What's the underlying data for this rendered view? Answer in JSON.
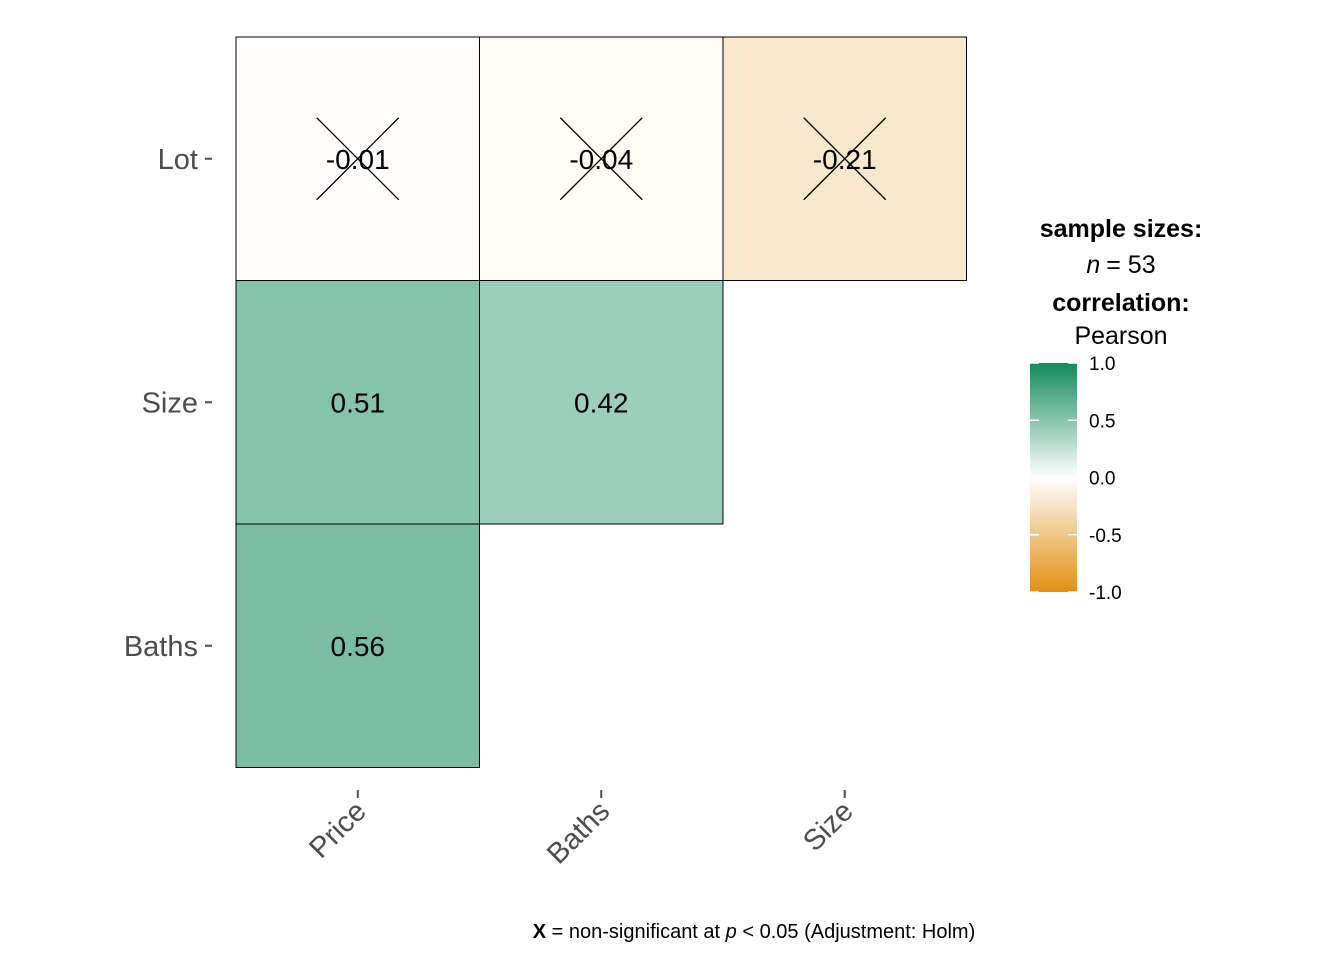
{
  "chart_data": {
    "type": "heatmap",
    "x_categories": [
      "Price",
      "Baths",
      "Size"
    ],
    "y_categories": [
      "Baths",
      "Size",
      "Lot"
    ],
    "cells": [
      {
        "x": "Price",
        "y": "Baths",
        "value": 0.56,
        "label": "0.56",
        "significant": true
      },
      {
        "x": "Price",
        "y": "Size",
        "value": 0.51,
        "label": "0.51",
        "significant": true
      },
      {
        "x": "Baths",
        "y": "Size",
        "value": 0.42,
        "label": "0.42",
        "significant": true
      },
      {
        "x": "Price",
        "y": "Lot",
        "value": -0.01,
        "label": "-0.01",
        "significant": false
      },
      {
        "x": "Baths",
        "y": "Lot",
        "value": -0.04,
        "label": "-0.04",
        "significant": false
      },
      {
        "x": "Size",
        "y": "Lot",
        "value": -0.21,
        "label": "-0.21",
        "significant": false
      }
    ],
    "legend": {
      "sample_sizes_title": "sample sizes:",
      "n_symbol": "n",
      "n_equals": "= 53",
      "correlation_title": "correlation:",
      "correlation_method": "Pearson",
      "ticks": [
        {
          "value": 1.0,
          "label": "1.0"
        },
        {
          "value": 0.5,
          "label": "0.5"
        },
        {
          "value": 0.0,
          "label": "0.0"
        },
        {
          "value": -0.5,
          "label": "-0.5"
        },
        {
          "value": -1.0,
          "label": "-1.0"
        }
      ],
      "range": [
        -1.0,
        1.0
      ],
      "colors": {
        "low": "#E0900F",
        "mid": "#FFFFFF",
        "high": "#128A5C"
      }
    },
    "caption": {
      "symbol": "X",
      "text_before_p": " = non-significant at ",
      "p_symbol": "p",
      "text_after_p": " < 0.05 (Adjustment: Holm)"
    }
  }
}
